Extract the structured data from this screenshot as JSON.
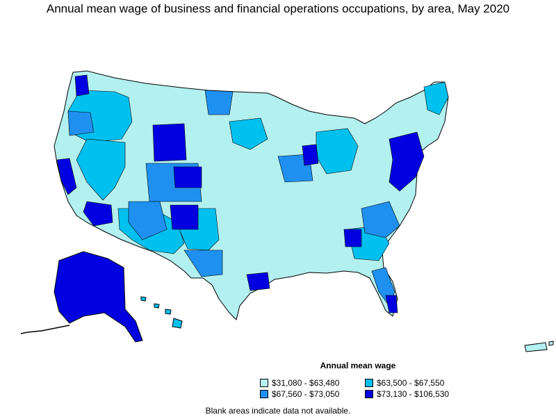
{
  "title": "Annual mean wage of business and financial operations occupations, by area, May 2020",
  "legend": {
    "title": "Annual mean wage",
    "items": [
      {
        "label": "$31,080 - $63,480",
        "color": "#b3f0f0"
      },
      {
        "label": "$63,500 - $67,550",
        "color": "#00c0f0"
      },
      {
        "label": "$67,560 - $73,050",
        "color": "#2090f0"
      },
      {
        "label": "$73,130 - $106,530",
        "color": "#0000e0"
      }
    ]
  },
  "note": "Blank areas indicate data not available.",
  "colors": {
    "tier1": "#b3f0f0",
    "tier2": "#00c0f0",
    "tier3": "#2090f0",
    "tier4": "#0000e0",
    "border": "#000000"
  }
}
